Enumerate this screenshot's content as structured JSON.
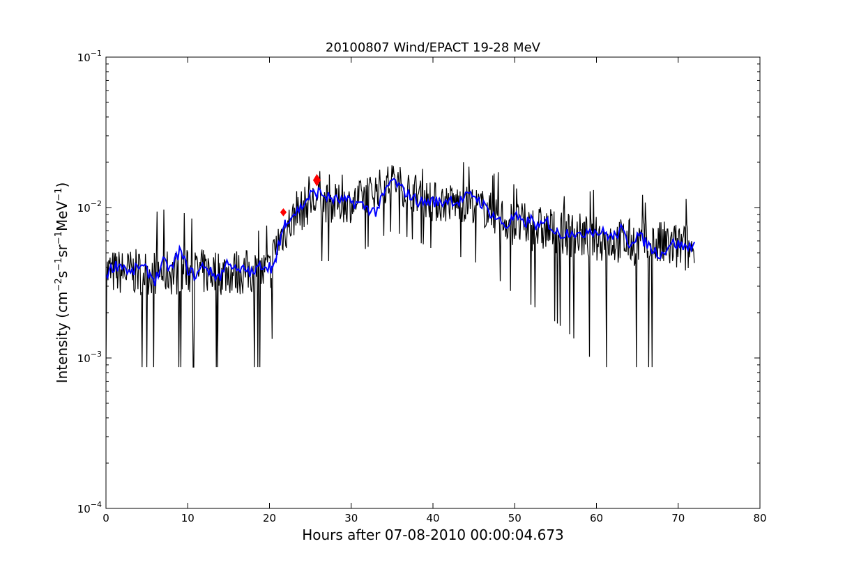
{
  "chart_data": {
    "type": "line",
    "title": "20100807 Wind/EPACT 19-28 MeV",
    "xlabel": "Hours after 07-08-2010 00:00:04.673",
    "ylabel_parts": [
      "Intensity (cm",
      "−2",
      "s",
      "−1",
      "sr",
      "−1",
      "MeV",
      "−1",
      ")"
    ],
    "xlim": [
      0,
      80
    ],
    "ylim": [
      0.0001,
      0.1
    ],
    "yscale": "log",
    "grid": false,
    "xticks": [
      0,
      10,
      20,
      30,
      40,
      50,
      60,
      70,
      80
    ],
    "xtick_labels": [
      "0",
      "10",
      "20",
      "30",
      "40",
      "50",
      "60",
      "70",
      "80"
    ],
    "yticks": [
      0.0001,
      0.001,
      0.01,
      0.1
    ],
    "ytick_labels": [
      {
        "base": "10",
        "exp": "−4"
      },
      {
        "base": "10",
        "exp": "−3"
      },
      {
        "base": "10",
        "exp": "−2"
      },
      {
        "base": "10",
        "exp": "−1"
      }
    ],
    "series": [
      {
        "role": "raw intensity",
        "color": "#000000",
        "x_range": [
          0,
          72
        ],
        "x_step": 0.0833,
        "envelope": [
          {
            "x": 0,
            "low": 0.0026,
            "high": 0.0053,
            "min": 0.00087,
            "max": 0.0078
          },
          {
            "x": 10,
            "low": 0.0026,
            "high": 0.0053,
            "min": 0.00087,
            "max": 0.0105
          },
          {
            "x": 20,
            "low": 0.0026,
            "high": 0.0053,
            "min": 0.00087,
            "max": 0.008
          },
          {
            "x": 21.2,
            "low": 0.0044,
            "high": 0.0088,
            "min": 0.0026,
            "max": 0.012
          },
          {
            "x": 25,
            "low": 0.0079,
            "high": 0.015,
            "min": 0.0044,
            "max": 0.019
          },
          {
            "x": 30,
            "low": 0.0079,
            "high": 0.014,
            "min": 0.0044,
            "max": 0.018
          },
          {
            "x": 35,
            "low": 0.011,
            "high": 0.02,
            "min": 0.007,
            "max": 0.023
          },
          {
            "x": 40,
            "low": 0.0079,
            "high": 0.015,
            "min": 0.0053,
            "max": 0.021
          },
          {
            "x": 45,
            "low": 0.0079,
            "high": 0.014,
            "min": 0.0044,
            "max": 0.022
          },
          {
            "x": 50,
            "low": 0.0053,
            "high": 0.011,
            "min": 0.0026,
            "max": 0.016
          },
          {
            "x": 60,
            "low": 0.0044,
            "high": 0.0088,
            "min": 0.00087,
            "max": 0.013
          },
          {
            "x": 72,
            "low": 0.0035,
            "high": 0.0079,
            "min": 0.00087,
            "max": 0.012
          }
        ]
      },
      {
        "role": "smoothed intensity",
        "color": "#0000ff",
        "x": [
          0,
          1,
          2,
          3,
          4,
          5,
          6,
          7,
          8,
          9,
          10,
          11,
          12,
          13,
          14,
          15,
          16,
          17,
          18,
          19,
          20,
          20.5,
          21,
          21.5,
          22,
          23,
          24,
          25,
          26,
          27,
          28,
          29,
          30,
          31,
          32,
          33,
          34,
          35,
          36,
          37,
          38,
          39,
          40,
          41,
          42,
          43,
          44,
          45,
          46,
          47,
          48,
          49,
          50,
          51,
          52,
          53,
          54,
          55,
          56,
          57,
          58,
          59,
          60,
          61,
          62,
          63,
          64,
          65,
          66,
          67,
          68,
          69,
          70,
          71,
          72
        ],
        "y": [
          0.0036,
          0.0041,
          0.0042,
          0.0036,
          0.0041,
          0.0038,
          0.0033,
          0.0043,
          0.0039,
          0.0052,
          0.0039,
          0.0035,
          0.0042,
          0.0036,
          0.0035,
          0.0045,
          0.0037,
          0.0039,
          0.0036,
          0.0042,
          0.0041,
          0.0039,
          0.0052,
          0.0068,
          0.0082,
          0.0091,
          0.0102,
          0.0122,
          0.0127,
          0.0118,
          0.0113,
          0.0111,
          0.0109,
          0.0106,
          0.0099,
          0.0094,
          0.0121,
          0.0154,
          0.0135,
          0.0123,
          0.0112,
          0.0108,
          0.0111,
          0.0107,
          0.0115,
          0.0108,
          0.0117,
          0.0122,
          0.0106,
          0.0093,
          0.0083,
          0.0075,
          0.0088,
          0.0078,
          0.0083,
          0.0073,
          0.0081,
          0.0068,
          0.0067,
          0.0071,
          0.0063,
          0.0073,
          0.0069,
          0.0068,
          0.0063,
          0.0071,
          0.0058,
          0.0066,
          0.0059,
          0.0052,
          0.0049,
          0.0058,
          0.0057,
          0.0054,
          0.0059
        ]
      }
    ],
    "markers": [
      {
        "x": 21.7,
        "y": 0.0093,
        "shape": "diamond",
        "size": "small",
        "color": "#ff0000"
      },
      {
        "x": 25.8,
        "y": 0.0152,
        "shape": "diamond",
        "size": "large",
        "color": "#ff0000"
      }
    ]
  }
}
